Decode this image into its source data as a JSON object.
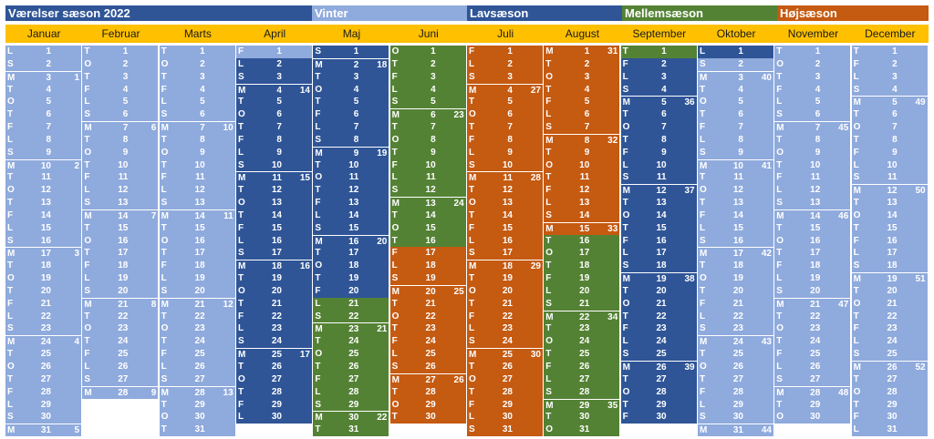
{
  "legend": [
    {
      "label": "Værelser sæson 2022",
      "color": "#2f5597"
    },
    {
      "label": "Vinter",
      "color": "#8faadc"
    },
    {
      "label": "Lavsæson",
      "color": "#2f5597"
    },
    {
      "label": "Mellemsæson",
      "color": "#548235"
    },
    {
      "label": "Højsæson",
      "color": "#c55a11"
    }
  ],
  "colors": {
    "V": "#8faadc",
    "L": "#2f5597",
    "M": "#548235",
    "H": "#c55a11",
    "header": "#ffc000"
  },
  "months": [
    {
      "name": "Januar",
      "first": 5,
      "days": 31,
      "seg": [
        [
          "V",
          31
        ]
      ]
    },
    {
      "name": "Februar",
      "first": 1,
      "days": 28,
      "seg": [
        [
          "V",
          28
        ]
      ]
    },
    {
      "name": "Marts",
      "first": 1,
      "days": 31,
      "seg": [
        [
          "V",
          31
        ]
      ]
    },
    {
      "name": "April",
      "first": 4,
      "days": 30,
      "seg": [
        [
          "V",
          1
        ],
        [
          "L",
          29
        ]
      ]
    },
    {
      "name": "Maj",
      "first": 6,
      "days": 31,
      "seg": [
        [
          "L",
          20
        ],
        [
          "M",
          11
        ]
      ]
    },
    {
      "name": "Juni",
      "first": 2,
      "days": 30,
      "seg": [
        [
          "M",
          16
        ],
        [
          "H",
          14
        ]
      ]
    },
    {
      "name": "Juli",
      "first": 4,
      "days": 31,
      "seg": [
        [
          "H",
          31
        ]
      ]
    },
    {
      "name": "August",
      "first": 0,
      "days": 31,
      "seg": [
        [
          "H",
          15
        ],
        [
          "M",
          16
        ]
      ]
    },
    {
      "name": "September",
      "first": 3,
      "days": 30,
      "seg": [
        [
          "M",
          1
        ],
        [
          "L",
          29
        ]
      ]
    },
    {
      "name": "Oktober",
      "first": 5,
      "days": 31,
      "seg": [
        [
          "L",
          1
        ],
        [
          "V",
          30
        ]
      ]
    },
    {
      "name": "November",
      "first": 1,
      "days": 30,
      "seg": [
        [
          "V",
          30
        ]
      ]
    },
    {
      "name": "December",
      "first": 3,
      "days": 31,
      "seg": [
        [
          "V",
          31
        ]
      ]
    }
  ],
  "weekday_letters": [
    "M",
    "T",
    "O",
    "T",
    "F",
    "L",
    "S"
  ],
  "week_numbers": {
    "Januar": {
      "3": "1",
      "10": "2",
      "17": "3",
      "24": "4",
      "31": "5"
    },
    "Februar": {
      "7": "6",
      "14": "7",
      "21": "8",
      "28": "9"
    },
    "Marts": {
      "7": "10",
      "14": "11",
      "21": "12",
      "28": "13"
    },
    "April": {
      "4": "14",
      "11": "15",
      "18": "16",
      "25": "17"
    },
    "Maj": {
      "2": "18",
      "9": "19",
      "16": "20",
      "23": "21",
      "30": "22"
    },
    "Juni": {
      "6": "23",
      "13": "24",
      "20": "25",
      "27": "26"
    },
    "Juli": {
      "4": "27",
      "11": "28",
      "18": "29",
      "25": "30"
    },
    "August": {
      "1": "31",
      "8": "32",
      "15": "33",
      "22": "34",
      "29": "35"
    },
    "September": {
      "5": "36",
      "12": "37",
      "19": "38",
      "26": "39"
    },
    "Oktober": {
      "3": "40",
      "10": "41",
      "17": "42",
      "24": "43",
      "31": "44"
    },
    "November": {
      "7": "45",
      "14": "46",
      "21": "47",
      "28": "48"
    },
    "December": {
      "5": "49",
      "12": "50",
      "19": "51",
      "26": "52"
    }
  }
}
